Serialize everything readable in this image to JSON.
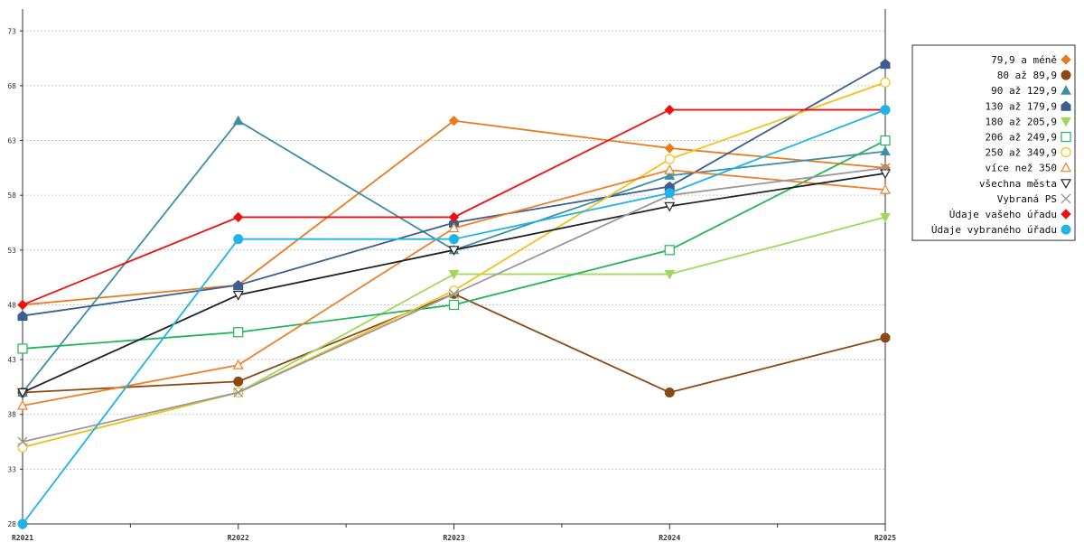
{
  "chart_data": {
    "type": "line",
    "x": [
      "R2021",
      "R2022",
      "R2023",
      "R2024",
      "R2025"
    ],
    "ylim": [
      28,
      75
    ],
    "yticks": [
      28,
      33,
      38,
      43,
      48,
      53,
      58,
      63,
      68,
      73
    ],
    "grid": true,
    "legend_position": "right",
    "series": [
      {
        "name": "79,9 a méně",
        "color": "#e87b1e",
        "marker": "diamond",
        "values": [
          48,
          49.8,
          64.8,
          62.3,
          60.5
        ]
      },
      {
        "name": "80 až 89,9",
        "color": "#8b4a14",
        "marker": "circle",
        "values": [
          40,
          41,
          49,
          40,
          45
        ]
      },
      {
        "name": "90 až 129,9",
        "color": "#3c8fa6",
        "marker": "triangle",
        "values": [
          40,
          64.8,
          53,
          59.8,
          62
        ]
      },
      {
        "name": "130 až 179,9",
        "color": "#3d5f8f",
        "marker": "house",
        "values": [
          47,
          49.8,
          55.5,
          58.8,
          70
        ]
      },
      {
        "name": "180 až 205,9",
        "color": "#9fd85a",
        "marker": "triangle-down",
        "values": [
          35,
          40,
          50.8,
          50.8,
          56
        ]
      },
      {
        "name": "206 až 249,9",
        "color": "#22b55c",
        "marker": "square",
        "values": [
          44,
          45.5,
          48,
          53,
          63
        ]
      },
      {
        "name": "250 až 349,9",
        "color": "#f2c21e",
        "marker": "circle-open",
        "values": [
          35,
          40,
          49.3,
          61.3,
          68.3
        ]
      },
      {
        "name": "více než 350",
        "color": "#f07f2a",
        "marker": "triangle-open",
        "values": [
          38.8,
          42.5,
          55,
          60.3,
          58.5
        ]
      },
      {
        "name": "všechna města",
        "color": "#222222",
        "marker": "triangle-down-open",
        "values": [
          40,
          48.9,
          53,
          57,
          60
        ]
      },
      {
        "name": "Vybraná PS",
        "color": "#999999",
        "marker": "x",
        "values": [
          35.5,
          40,
          49,
          58,
          60.5
        ]
      },
      {
        "name": "Údaje vašeho úřadu",
        "color": "#ee1111",
        "marker": "diamond",
        "values": [
          48,
          56,
          56,
          65.8,
          65.8
        ]
      },
      {
        "name": "Údaje vybraného úřadu",
        "color": "#1eb4e6",
        "marker": "circle",
        "values": [
          28,
          54,
          54,
          58.2,
          65.8
        ]
      }
    ]
  }
}
